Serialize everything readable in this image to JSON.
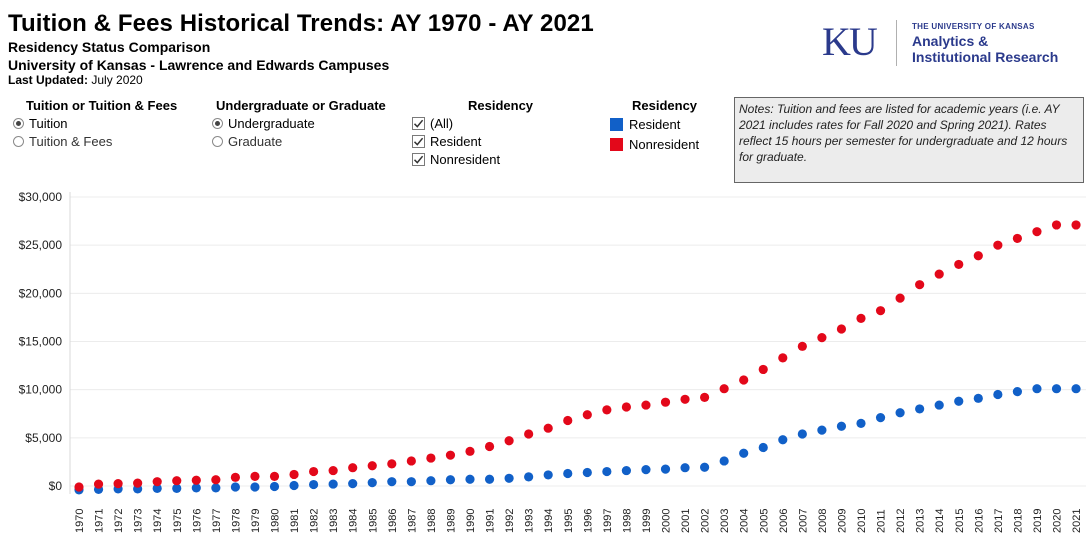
{
  "header": {
    "title": "Tuition & Fees Historical Trends: AY 1970 - AY 2021",
    "subtitle1": "Residency Status Comparison",
    "subtitle2": "University of Kansas - Lawrence and Edwards Campuses",
    "updated_label": "Last Updated:",
    "updated_value": "July 2020"
  },
  "logo": {
    "mark": "KU",
    "university": "THE UNIVERSITY OF KANSAS",
    "dept_line1": "Analytics &",
    "dept_line2": "Institutional Research"
  },
  "filters": {
    "tuition_type": {
      "heading": "Tuition or Tuition & Fees",
      "options": [
        "Tuition",
        "Tuition & Fees"
      ],
      "selected": "Tuition"
    },
    "level": {
      "heading": "Undergraduate or Graduate",
      "options": [
        "Undergraduate",
        "Graduate"
      ],
      "selected": "Undergraduate"
    },
    "residency": {
      "heading": "Residency",
      "options": [
        "(All)",
        "Resident",
        "Nonresident"
      ]
    }
  },
  "legend": {
    "heading": "Residency",
    "items": [
      {
        "label": "Resident",
        "color": "#1160c8"
      },
      {
        "label": "Nonresident",
        "color": "#e3081a"
      }
    ]
  },
  "notes": "Notes: Tuition and fees are listed for academic years (i.e. AY 2021 includes rates for Fall 2020 and Spring 2021). Rates reflect 15 hours per semester for undergraduate and 12 hours for graduate.",
  "chart_data": {
    "type": "scatter",
    "title": "Tuition & Fees Historical Trends: AY 1970 - AY 2021",
    "xlabel": "",
    "ylabel": "",
    "ylim": [
      0,
      30000
    ],
    "yticks": [
      "$0",
      "$5,000",
      "$10,000",
      "$15,000",
      "$20,000",
      "$25,000",
      "$30,000"
    ],
    "ytick_values": [
      0,
      5000,
      10000,
      15000,
      20000,
      25000,
      30000
    ],
    "grid": true,
    "categories": [
      "1970",
      "1971",
      "1972",
      "1973",
      "1974",
      "1975",
      "1976",
      "1977",
      "1978",
      "1979",
      "1980",
      "1981",
      "1982",
      "1983",
      "1984",
      "1985",
      "1986",
      "1987",
      "1988",
      "1989",
      "1990",
      "1991",
      "1992",
      "1993",
      "1994",
      "1995",
      "1996",
      "1997",
      "1998",
      "1999",
      "2000",
      "2001",
      "2002",
      "2003",
      "2004",
      "2005",
      "2006",
      "2007",
      "2008",
      "2009",
      "2010",
      "2011",
      "2012",
      "2013",
      "2014",
      "2015",
      "2016",
      "2017",
      "2018",
      "2019",
      "2020",
      "2021"
    ],
    "series": [
      {
        "name": "Resident",
        "color": "#1160c8",
        "values": [
          -400,
          -350,
          -300,
          -300,
          -250,
          -250,
          -200,
          -200,
          -100,
          -100,
          -50,
          50,
          150,
          200,
          250,
          350,
          450,
          450,
          550,
          650,
          700,
          700,
          800,
          950,
          1150,
          1300,
          1400,
          1500,
          1600,
          1700,
          1750,
          1900,
          1950,
          2600,
          3400,
          4000,
          4800,
          5400,
          5800,
          6200,
          6500,
          7100,
          7600,
          8000,
          8400,
          8800,
          9100,
          9500,
          9800,
          10100,
          10100,
          10100
        ]
      },
      {
        "name": "Nonresident",
        "color": "#e3081a",
        "values": [
          -100,
          200,
          250,
          300,
          450,
          550,
          600,
          650,
          900,
          1000,
          1000,
          1200,
          1500,
          1600,
          1900,
          2100,
          2300,
          2600,
          2900,
          3200,
          3600,
          4100,
          4700,
          5400,
          6000,
          6800,
          7400,
          7900,
          8200,
          8400,
          8700,
          9000,
          9200,
          10100,
          11000,
          12100,
          13300,
          14500,
          15400,
          16300,
          17400,
          18200,
          19500,
          20900,
          22000,
          23000,
          23900,
          25000,
          25700,
          26400,
          27100,
          27100
        ]
      }
    ]
  }
}
